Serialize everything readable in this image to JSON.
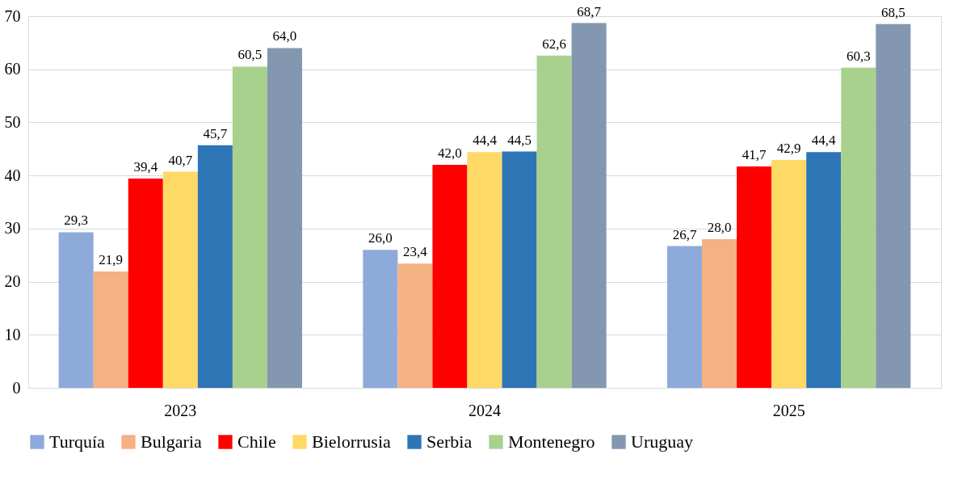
{
  "chart_data": {
    "type": "bar",
    "categories": [
      "2023",
      "2024",
      "2025"
    ],
    "series": [
      {
        "name": "Turquía",
        "color": "#8eaadb",
        "values": [
          29.3,
          26.0,
          26.7
        ],
        "value_labels": [
          "29,3",
          "26,0",
          "26,7"
        ]
      },
      {
        "name": "Bulgaria",
        "color": "#f4b183",
        "values": [
          21.9,
          23.4,
          28.0
        ],
        "value_labels": [
          "21,9",
          "23,4",
          "28,0"
        ]
      },
      {
        "name": "Chile",
        "color": "#ff0000",
        "values": [
          39.4,
          42.0,
          41.7
        ],
        "value_labels": [
          "39,4",
          "42,0",
          "41,7"
        ]
      },
      {
        "name": "Bielorrusia",
        "color": "#ffd966",
        "values": [
          40.7,
          44.4,
          42.9
        ],
        "value_labels": [
          "40,7",
          "44,4",
          "42,9"
        ]
      },
      {
        "name": "Serbia",
        "color": "#2e75b6",
        "values": [
          45.7,
          44.5,
          44.4
        ],
        "value_labels": [
          "45,7",
          "44,5",
          "44,4"
        ]
      },
      {
        "name": "Montenegro",
        "color": "#a9d18e",
        "values": [
          60.5,
          62.6,
          60.3
        ],
        "value_labels": [
          "60,5",
          "62,6",
          "60,3"
        ]
      },
      {
        "name": "Uruguay",
        "color": "#8497b0",
        "values": [
          64.0,
          68.7,
          68.5
        ],
        "value_labels": [
          "64,0",
          "68,7",
          "68,5"
        ]
      }
    ],
    "ylim": [
      0,
      70
    ],
    "yticks": [
      0,
      10,
      20,
      30,
      40,
      50,
      60,
      70
    ],
    "grid": "y",
    "legend": "bottom"
  }
}
